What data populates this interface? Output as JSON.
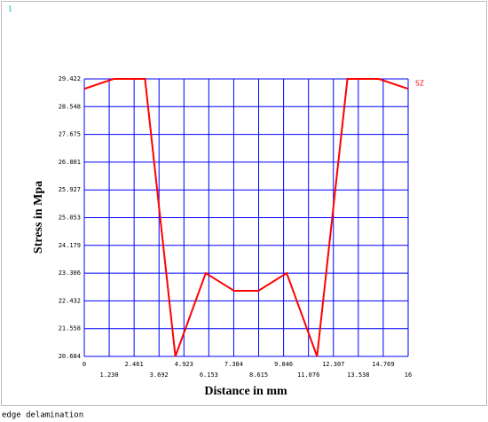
{
  "chart_data": {
    "type": "line",
    "window_number": "1",
    "xlabel": "Distance in mm",
    "ylabel": "Stress in Mpa",
    "caption": "edge delamination",
    "x": [
      0,
      1.45,
      3.0,
      4.5,
      6.0,
      7.4,
      8.6,
      10.0,
      11.5,
      13.0,
      14.55,
      16
    ],
    "series": [
      {
        "name": "SZ",
        "color": "#ff0000",
        "values": [
          29.11,
          29.422,
          29.422,
          20.684,
          23.306,
          22.75,
          22.75,
          23.306,
          20.684,
          29.422,
          29.422,
          29.11
        ]
      }
    ],
    "xlim": [
      0,
      16
    ],
    "xticks": [
      0,
      {
        "value": 1.23,
        "label": "1.230"
      },
      2.461,
      3.692,
      4.923,
      6.153,
      7.384,
      8.615,
      9.846,
      11.076,
      12.307,
      13.538,
      14.769,
      16
    ],
    "ylim": [
      20.684,
      29.422
    ],
    "yticks": [
      20.684,
      21.558,
      22.432,
      23.306,
      24.179,
      25.053,
      25.927,
      26.801,
      27.675,
      28.548,
      29.422
    ],
    "grid": true,
    "grid_color": "#0000ff"
  }
}
